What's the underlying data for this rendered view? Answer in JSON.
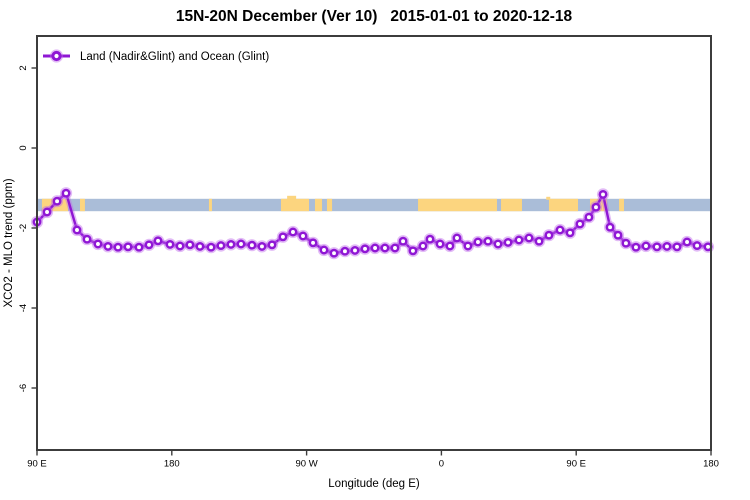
{
  "title": "15N-20N December (Ver 10)   2015-01-01 to 2020-12-18",
  "legend": {
    "label": "Land (Nadir&Glint) and Ocean (Glint)"
  },
  "axes": {
    "x_label": "Longitude (deg E)",
    "y_label": "XCO2 - MLO trend (ppm)"
  },
  "colors": {
    "series": "#8f17d4",
    "series_halo": "rgba(190,105,235,0.45)",
    "marker_fill": "#ffffff",
    "ocean_band": "#aabdd8",
    "land_band": "#fcd57f",
    "axis": "#3c3c3c"
  },
  "chart_data": {
    "type": "line",
    "title": "15N-20N December (Ver 10)   2015-01-01 to 2020-12-18",
    "xlabel": "Longitude (deg E)",
    "ylabel": "XCO2 - MLO trend (ppm)",
    "series_name": "Land (Nadir&Glint) and Ocean (Glint)",
    "x_axis_note": "x stored as degrees east of 90E, axis wraps 90E->180->90W->0->90E->180",
    "x_tick_positions_deg": [
      0,
      90,
      180,
      270,
      360,
      450
    ],
    "x_tick_labels": [
      "90 E",
      "180",
      "90 W",
      "0",
      "90 E",
      "180"
    ],
    "y_tick_values": [
      2,
      0,
      -2,
      -4,
      -6
    ],
    "y_tick_labels": [
      "2",
      "0",
      "-2",
      "-4",
      "-6"
    ],
    "xlim_deg": [
      0,
      450
    ],
    "ylim_ppm": [
      -7.6,
      2.8
    ],
    "grid": false,
    "legend_position": "top-left-inside",
    "map_band": {
      "meaning": "world map strip for 15N-20N: land=orange, ocean=blue",
      "top_ppm": -1.27,
      "bottom_ppm": -1.58,
      "land_segments_deg": [
        [
          3.3,
          20.7
        ],
        [
          28.7,
          32.0
        ],
        [
          114.8,
          116.8
        ],
        [
          162.9,
          181.6
        ],
        [
          185.6,
          190.3
        ],
        [
          193.6,
          197.0
        ],
        [
          254.4,
          307.1
        ],
        [
          309.8,
          323.8
        ],
        [
          341.8,
          361.2
        ],
        [
          369.2,
          380.5
        ],
        [
          388.6,
          391.9
        ]
      ]
    },
    "x_deg": [
      0.0,
      6.7,
      13.4,
      19.4,
      26.7,
      33.4,
      40.7,
      47.4,
      54.1,
      60.8,
      68.1,
      74.8,
      80.8,
      88.8,
      95.5,
      102.1,
      108.8,
      116.2,
      122.8,
      129.5,
      136.2,
      143.5,
      150.2,
      156.9,
      164.2,
      170.9,
      177.6,
      184.3,
      191.6,
      198.3,
      205.6,
      212.3,
      219.0,
      225.7,
      232.3,
      239.0,
      244.4,
      251.0,
      257.7,
      262.4,
      269.1,
      275.7,
      280.4,
      287.7,
      294.4,
      301.1,
      307.8,
      314.5,
      321.8,
      328.5,
      335.2,
      341.8,
      349.2,
      355.9,
      362.5,
      368.5,
      373.2,
      377.9,
      382.6,
      387.9,
      393.2,
      399.9,
      406.6,
      413.9,
      420.6,
      427.3,
      434.0,
      440.7,
      448.0
    ],
    "values": [
      -1.85,
      -1.6,
      -1.33,
      -1.13,
      -2.05,
      -2.28,
      -2.4,
      -2.46,
      -2.48,
      -2.47,
      -2.48,
      -2.42,
      -2.32,
      -2.41,
      -2.45,
      -2.42,
      -2.46,
      -2.48,
      -2.44,
      -2.41,
      -2.4,
      -2.43,
      -2.46,
      -2.42,
      -2.22,
      -2.1,
      -2.2,
      -2.37,
      -2.55,
      -2.63,
      -2.58,
      -2.56,
      -2.52,
      -2.5,
      -2.5,
      -2.5,
      -2.33,
      -2.57,
      -2.45,
      -2.28,
      -2.4,
      -2.45,
      -2.25,
      -2.45,
      -2.35,
      -2.33,
      -2.4,
      -2.36,
      -2.3,
      -2.25,
      -2.33,
      -2.18,
      -2.05,
      -2.12,
      -1.9,
      -1.73,
      -1.48,
      -1.16,
      -1.98,
      -2.18,
      -2.38,
      -2.48,
      -2.45,
      -2.47,
      -2.46,
      -2.47,
      -2.35,
      -2.44,
      -2.47
    ]
  }
}
